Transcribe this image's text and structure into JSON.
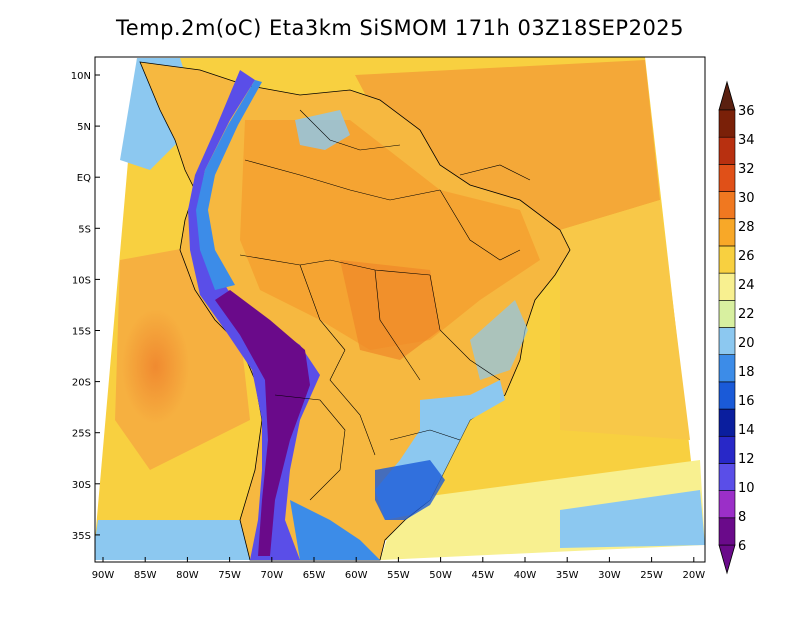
{
  "title": "Temp.2m(oC) Eta3km SiSMOM 171h 03Z18SEP2025",
  "lat_labels": [
    "10N",
    "5N",
    "EQ",
    "5S",
    "10S",
    "15S",
    "20S",
    "25S",
    "30S",
    "35S"
  ],
  "lon_labels": [
    "90W",
    "85W",
    "80W",
    "75W",
    "70W",
    "65W",
    "60W",
    "55W",
    "50W",
    "45W",
    "40W",
    "35W",
    "30W",
    "25W",
    "20W"
  ],
  "colorbar": {
    "labels": [
      "6",
      "8",
      "10",
      "12",
      "14",
      "16",
      "18",
      "20",
      "22",
      "24",
      "26",
      "28",
      "30",
      "32",
      "34",
      "36"
    ],
    "colors": [
      "#6a0a8a",
      "#9b2fc8",
      "#5a4ee8",
      "#2828c8",
      "#0a1e9e",
      "#1a5ad8",
      "#3c8ce8",
      "#8cc8f0",
      "#d8f0a0",
      "#f8f090",
      "#f8d040",
      "#f8a828",
      "#f07820",
      "#e05018",
      "#b83010",
      "#7a2008"
    ],
    "low_cap_color": "#6a0a8a",
    "high_cap_color": "#5a2010"
  }
}
